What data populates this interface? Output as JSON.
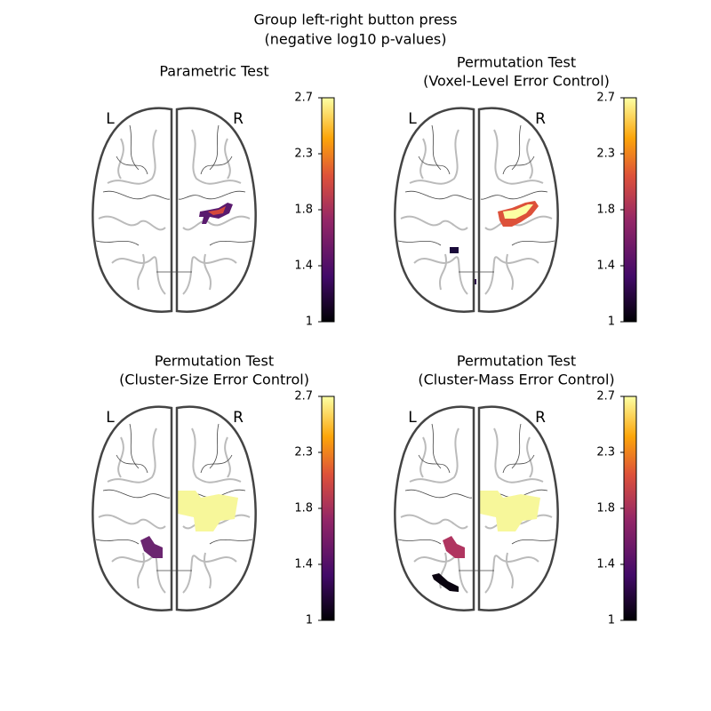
{
  "title": [
    "Group left-right button press",
    "(negative log10 p-values)"
  ],
  "panels": [
    {
      "title": [
        "Parametric Test"
      ],
      "left_label": "L",
      "right_label": "R",
      "colorbar": {
        "lim": [
          1,
          2.7
        ],
        "ticks": [
          1,
          {
            "value": 1.425,
            "label": "1.4"
          },
          {
            "value": 1.85,
            "label": "1.8"
          },
          {
            "value": 2.275,
            "label": "2.3"
          },
          2.7
        ]
      }
    },
    {
      "title": [
        "Permutation Test",
        "(Voxel-Level Error Control)"
      ],
      "left_label": "L",
      "right_label": "R",
      "colorbar": {
        "lim": [
          1,
          2.7
        ],
        "ticks": [
          1,
          {
            "value": 1.425,
            "label": "1.4"
          },
          {
            "value": 1.85,
            "label": "1.8"
          },
          {
            "value": 2.275,
            "label": "2.3"
          },
          2.7
        ]
      }
    },
    {
      "title": [
        "Permutation Test",
        "(Cluster-Size Error Control)"
      ],
      "left_label": "L",
      "right_label": "R",
      "colorbar": {
        "lim": [
          1,
          2.7
        ],
        "ticks": [
          1,
          {
            "value": 1.425,
            "label": "1.4"
          },
          {
            "value": 1.85,
            "label": "1.8"
          },
          {
            "value": 2.275,
            "label": "2.3"
          },
          2.7
        ]
      }
    },
    {
      "title": [
        "Permutation Test",
        "(Cluster-Mass Error Control)"
      ],
      "left_label": "L",
      "right_label": "R",
      "colorbar": {
        "lim": [
          1,
          2.7
        ],
        "ticks": [
          1,
          {
            "value": 1.425,
            "label": "1.4"
          },
          {
            "value": 1.85,
            "label": "1.8"
          },
          {
            "value": 2.275,
            "label": "2.3"
          },
          2.7
        ]
      }
    }
  ]
}
